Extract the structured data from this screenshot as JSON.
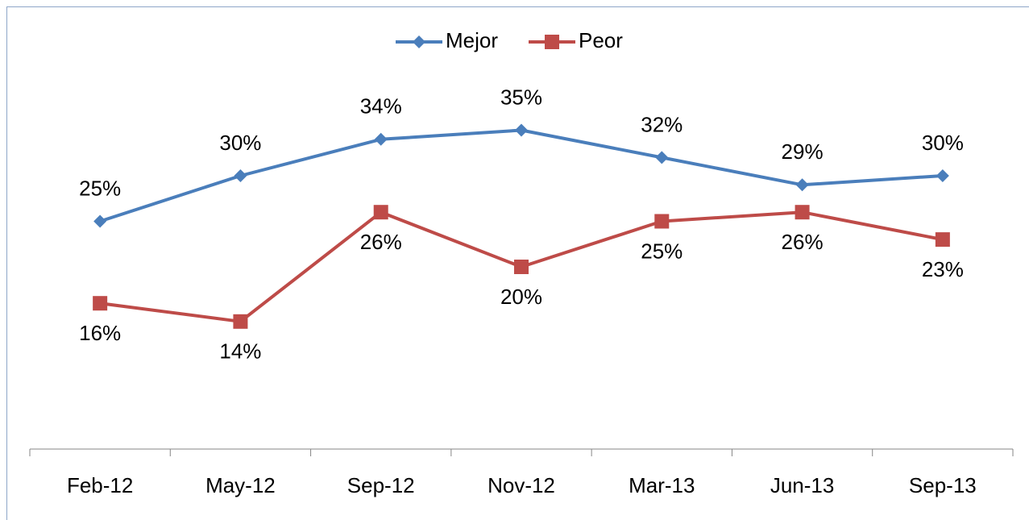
{
  "chart_data": {
    "type": "line",
    "categories": [
      "Feb-12",
      "May-12",
      "Sep-12",
      "Nov-12",
      "Mar-13",
      "Jun-13",
      "Sep-13"
    ],
    "series": [
      {
        "name": "Mejor",
        "color": "#4a7ebb",
        "marker": "diamond",
        "values": [
          25,
          30,
          34,
          35,
          32,
          29,
          30
        ],
        "value_labels": [
          "25%",
          "30%",
          "34%",
          "35%",
          "32%",
          "29%",
          "30%"
        ]
      },
      {
        "name": "Peor",
        "color": "#be4b48",
        "marker": "square",
        "values": [
          16,
          14,
          26,
          20,
          25,
          26,
          23
        ],
        "value_labels": [
          "16%",
          "14%",
          "26%",
          "20%",
          "25%",
          "26%",
          "23%"
        ]
      }
    ],
    "ylim": [
      0,
      40
    ],
    "legend": "top",
    "grid": false
  }
}
